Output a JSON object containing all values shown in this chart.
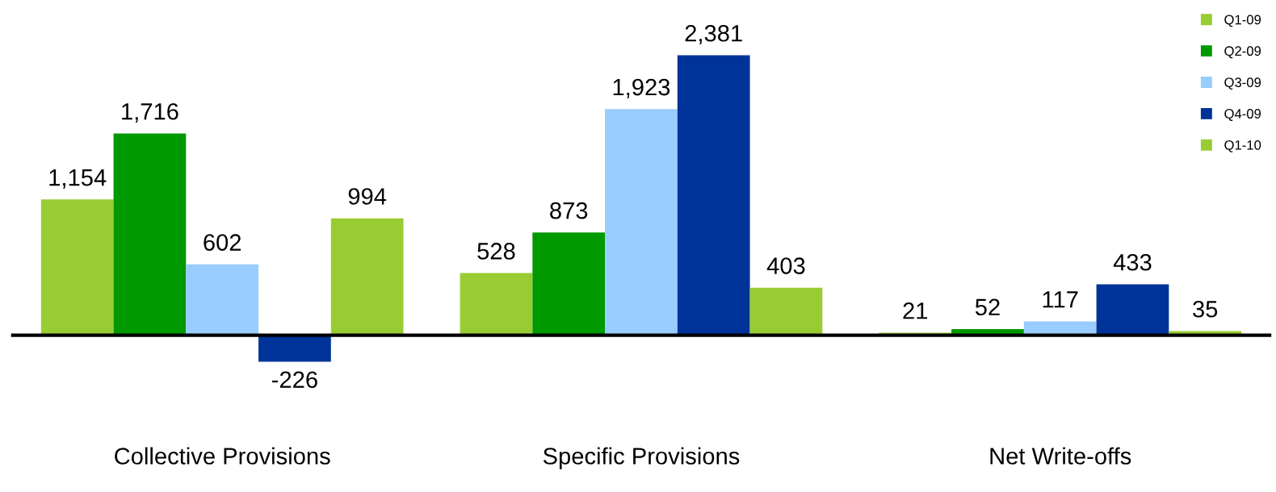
{
  "chart_data": {
    "type": "bar",
    "categories": [
      "Collective Provisions",
      "Specific Provisions",
      "Net Write-offs"
    ],
    "series": [
      {
        "name": "Q1-09",
        "color": "#99cc33",
        "values": [
          1154,
          528,
          21
        ],
        "value_labels": [
          "1,154",
          "528",
          "21"
        ]
      },
      {
        "name": "Q2-09",
        "color": "#009900",
        "values": [
          1716,
          873,
          52
        ],
        "value_labels": [
          "1,716",
          "873",
          "52"
        ]
      },
      {
        "name": "Q3-09",
        "color": "#99ccff",
        "values": [
          602,
          1923,
          117
        ],
        "value_labels": [
          "602",
          "1,923",
          "117"
        ]
      },
      {
        "name": "Q4-09",
        "color": "#003399",
        "values": [
          -226,
          2381,
          433
        ],
        "value_labels": [
          "-226",
          "2,381",
          "433"
        ]
      },
      {
        "name": "Q1-10",
        "color": "#99cc33",
        "values": [
          994,
          403,
          35
        ],
        "value_labels": [
          "994",
          "403",
          "35"
        ]
      }
    ],
    "legend": "top right",
    "grid": false,
    "tick_labels": "x"
  }
}
